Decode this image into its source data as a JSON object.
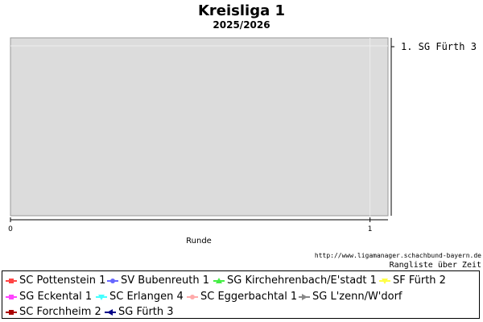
{
  "chart_data": {
    "type": "line",
    "title": "Kreisliga 1",
    "subtitle": "2025/2026",
    "xlabel": "Runde",
    "ylabel": "",
    "xlim": [
      0,
      1.05
    ],
    "x_ticks": [
      "0",
      "1"
    ],
    "ranking_labels": [
      "1. SG Fürth 3"
    ],
    "source_url": "http://www.ligamanager.schachbund-bayern.de",
    "footer_label": "Rangliste über Zeit",
    "grid": true,
    "legend_position": "bottom",
    "series": [
      {
        "name": "SC Pottenstein 1",
        "color": "#ff4444",
        "marker": "square",
        "values": []
      },
      {
        "name": "SV Bubenreuth 1",
        "color": "#6666ff",
        "marker": "circle",
        "values": []
      },
      {
        "name": "SG Kirchehrenbach/E'stadt 1",
        "color": "#44ee44",
        "marker": "triangle-up",
        "values": []
      },
      {
        "name": "SF Fürth 2",
        "color": "#ffff44",
        "marker": "triangle-down",
        "values": []
      },
      {
        "name": "SG Eckental 1",
        "color": "#ff44ff",
        "marker": "square",
        "values": []
      },
      {
        "name": "SC Erlangen 4",
        "color": "#44ffff",
        "marker": "triangle-down",
        "values": []
      },
      {
        "name": "SC Eggerbachtal 1",
        "color": "#ffaaaa",
        "marker": "circle",
        "values": []
      },
      {
        "name": "SG L'zenn/W'dorf",
        "color": "#888888",
        "marker": "triangle-right",
        "values": []
      },
      {
        "name": "SC Forchheim 2",
        "color": "#aa0000",
        "marker": "square",
        "values": []
      },
      {
        "name": "SG Fürth 3",
        "color": "#000088",
        "marker": "triangle-left",
        "values": []
      }
    ]
  }
}
